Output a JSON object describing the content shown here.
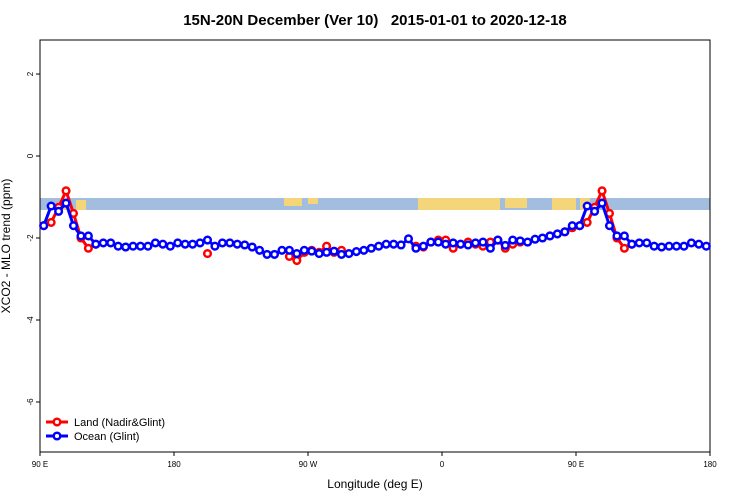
{
  "chart_data": {
    "type": "line",
    "title": "15N-20N December (Ver 10)   2015-01-01 to 2020-12-18",
    "x_label": "Longitude (deg E)",
    "y_label": "XCO2 - MLO trend (ppm)",
    "xlim": [
      90,
      540
    ],
    "ylim": [
      -7.22,
      2.83
    ],
    "xticks": [
      {
        "value": 90,
        "label": "90 E"
      },
      180,
      {
        "value": 270,
        "label": "90 W"
      },
      {
        "value": 360,
        "label": "0"
      },
      {
        "value": 450,
        "label": "90 E"
      },
      {
        "value": 540,
        "label": "180"
      }
    ],
    "yticks": [
      2,
      0,
      -2,
      -4,
      -6
    ],
    "legend": "bottom-left",
    "x": [
      92.5,
      97.5,
      102.5,
      107.5,
      112.5,
      117.5,
      122.5,
      127.5,
      132.5,
      137.5,
      142.5,
      147.5,
      152.5,
      157.5,
      162.5,
      167.5,
      172.5,
      177.5,
      182.5,
      187.5,
      192.5,
      197.5,
      202.5,
      207.5,
      212.5,
      217.5,
      222.5,
      227.5,
      232.5,
      237.5,
      242.5,
      247.5,
      252.5,
      257.5,
      262.5,
      267.5,
      272.5,
      277.5,
      282.5,
      287.5,
      292.5,
      297.5,
      302.5,
      307.5,
      312.5,
      317.5,
      322.5,
      327.5,
      332.5,
      337.5,
      342.5,
      347.5,
      352.5,
      357.5,
      362.5,
      367.5,
      372.5,
      377.5,
      382.5,
      387.5,
      392.5,
      397.5,
      402.5,
      407.5,
      412.5,
      417.5,
      422.5,
      427.5,
      432.5,
      437.5,
      442.5,
      447.5,
      452.5,
      457.5,
      462.5,
      467.5,
      472.5,
      477.5,
      482.5,
      487.5,
      492.5,
      497.5,
      502.5,
      507.5,
      512.5,
      517.5,
      522.5,
      527.5,
      532.5,
      537.5
    ],
    "series": [
      {
        "name": "Land (Nadir&Glint)",
        "color": "#ff0000",
        "values": [
          -1.7,
          -1.62,
          -1.25,
          -0.85,
          -1.4,
          -2.0,
          -2.25,
          -2.15,
          null,
          null,
          null,
          null,
          null,
          null,
          null,
          null,
          null,
          null,
          null,
          null,
          null,
          null,
          -2.38,
          null,
          null,
          null,
          null,
          null,
          null,
          null,
          null,
          null,
          null,
          -2.45,
          -2.55,
          -2.35,
          -2.3,
          -2.35,
          -2.2,
          -2.35,
          -2.3,
          null,
          null,
          null,
          null,
          null,
          null,
          null,
          null,
          null,
          -2.2,
          -2.22,
          -2.1,
          -2.05,
          -2.05,
          -2.25,
          -2.15,
          -2.1,
          -2.15,
          -2.2,
          -2.1,
          -2.05,
          -2.25,
          -2.15,
          -2.1,
          null,
          null,
          null,
          -1.95,
          -1.9,
          -1.85,
          -1.75,
          -1.7,
          -1.62,
          -1.25,
          -0.85,
          -1.4,
          -2.0,
          -2.25,
          -2.15,
          null,
          null,
          null,
          null,
          null,
          null,
          null,
          null,
          null,
          null
        ]
      },
      {
        "name": "Ocean (Glint)",
        "color": "#0000ff",
        "values": [
          -1.7,
          -1.22,
          -1.35,
          -1.15,
          -1.7,
          -1.95,
          -1.95,
          -2.15,
          -2.12,
          -2.12,
          -2.2,
          -2.22,
          -2.2,
          -2.2,
          -2.2,
          -2.12,
          -2.15,
          -2.2,
          -2.12,
          -2.15,
          -2.15,
          -2.12,
          -2.05,
          -2.2,
          -2.12,
          -2.12,
          -2.15,
          -2.17,
          -2.22,
          -2.3,
          -2.4,
          -2.4,
          -2.3,
          -2.3,
          -2.38,
          -2.3,
          -2.32,
          -2.38,
          -2.35,
          -2.32,
          -2.4,
          -2.38,
          -2.33,
          -2.3,
          -2.25,
          -2.2,
          -2.15,
          -2.15,
          -2.17,
          -2.02,
          -2.25,
          -2.2,
          -2.1,
          -2.1,
          -2.15,
          -2.12,
          -2.15,
          -2.17,
          -2.12,
          -2.1,
          -2.25,
          -2.05,
          -2.18,
          -2.05,
          -2.07,
          -2.1,
          -2.03,
          -2.0,
          -1.95,
          -1.9,
          -1.85,
          -1.7,
          -1.7,
          -1.22,
          -1.35,
          -1.15,
          -1.7,
          -1.95,
          -1.95,
          -2.15,
          -2.12,
          -2.12,
          -2.2,
          -2.22,
          -2.2,
          -2.2,
          -2.2,
          -2.12,
          -2.15,
          -2.2
        ]
      }
    ]
  }
}
